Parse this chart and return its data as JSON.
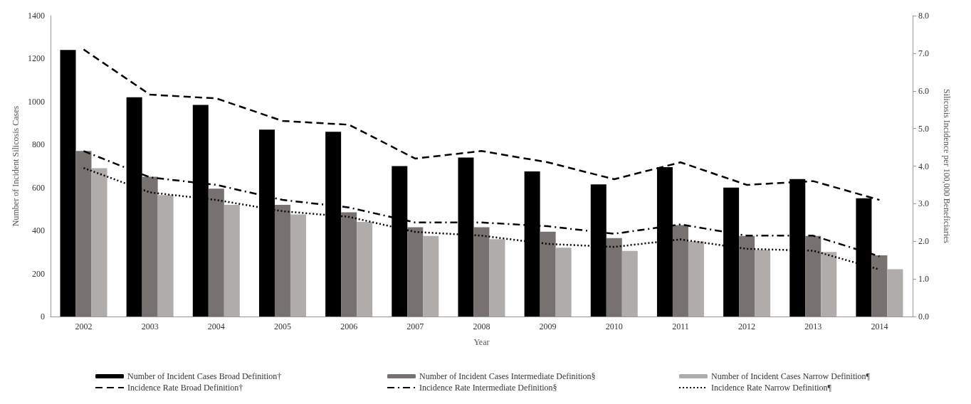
{
  "chart_data": {
    "type": "bar",
    "xlabel": "Year",
    "ylabel": "Number of Incident Silicosis Cases",
    "y2label": "Silicosis Incidence per 100,000 Beneficiaries",
    "categories": [
      "2002",
      "2003",
      "2004",
      "2005",
      "2006",
      "2007",
      "2008",
      "2009",
      "2010",
      "2011",
      "2012",
      "2013",
      "2014"
    ],
    "series": [
      {
        "name": "Number of Incident Cases Broad Definition†",
        "color": "#000000",
        "values": [
          1240,
          1020,
          985,
          870,
          860,
          700,
          740,
          675,
          615,
          695,
          600,
          640,
          550
        ]
      },
      {
        "name": "Number of Incident Cases Intermediate Definition§",
        "color": "#777270",
        "values": [
          770,
          650,
          595,
          520,
          485,
          415,
          415,
          395,
          365,
          425,
          375,
          375,
          285
        ]
      },
      {
        "name": "Number of Incident Cases Narrow Definition¶",
        "color": "#b0acaa",
        "values": [
          690,
          565,
          520,
          475,
          440,
          375,
          360,
          320,
          305,
          350,
          310,
          300,
          220
        ]
      },
      {
        "type": "line",
        "axis": "y2",
        "line_style": "dashed",
        "name": "Incidence Rate Broad Definition†",
        "color": "#000000",
        "values": [
          7.1,
          5.9,
          5.8,
          5.2,
          5.1,
          4.2,
          4.4,
          4.1,
          3.65,
          4.1,
          3.5,
          3.6,
          3.1
        ]
      },
      {
        "type": "line",
        "axis": "y2",
        "line_style": "dashdot",
        "name": "Incidence Rate Intermediate Definition§",
        "color": "#000000",
        "values": [
          4.4,
          3.7,
          3.5,
          3.1,
          2.9,
          2.5,
          2.5,
          2.4,
          2.2,
          2.45,
          2.15,
          2.15,
          1.6
        ]
      },
      {
        "type": "line",
        "axis": "y2",
        "line_style": "dotted",
        "name": "Incidence Rate Narrow Definition¶",
        "color": "#000000",
        "values": [
          3.95,
          3.3,
          3.1,
          2.8,
          2.65,
          2.25,
          2.15,
          1.93,
          1.85,
          2.05,
          1.8,
          1.75,
          1.25
        ]
      }
    ],
    "ylim": [
      0,
      1400
    ],
    "yticks": [
      0,
      200,
      400,
      600,
      800,
      1000,
      1200,
      1400
    ],
    "y2lim": [
      0,
      8
    ],
    "y2ticks": [
      {
        "value": 0,
        "label": "0.0"
      },
      {
        "value": 1,
        "label": "1.0"
      },
      {
        "value": 2,
        "label": "2.0"
      },
      {
        "value": 3,
        "label": "3.0"
      },
      {
        "value": 4,
        "label": "4.0"
      },
      {
        "value": 5,
        "label": "5.0"
      },
      {
        "value": 6,
        "label": "6.0"
      },
      {
        "value": 7,
        "label": "7.0"
      },
      {
        "value": 8,
        "label": "8.0"
      }
    ],
    "grid": false,
    "marker": "none",
    "legend": "bottom"
  }
}
